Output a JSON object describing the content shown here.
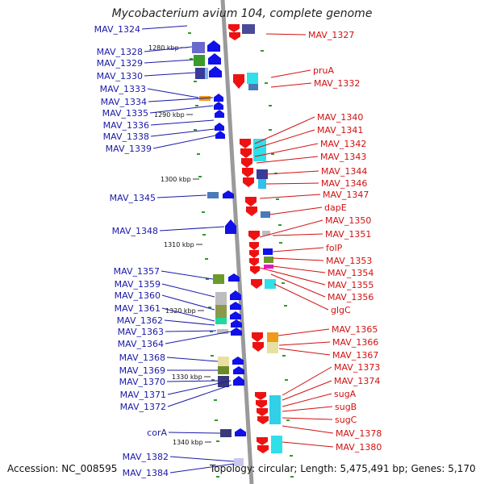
{
  "title": "Mycobacterium avium 104, complete genome",
  "accession": "Accession: NC_008595",
  "topology": "Topology: circular; Length: 5,475,491 bp; Genes: 5,170",
  "colors": {
    "left_label": "#1a1aa8",
    "right_label": "#d11111",
    "backbone": "#9a9a9a"
  },
  "ruler_ticks": [
    "1280 kbp",
    "1290 kbp",
    "1300 kbp",
    "1310 kbp",
    "1320 kbp",
    "1330 kbp",
    "1340 kbp"
  ],
  "left_labels": [
    "MAV_1324",
    "MAV_1328",
    "MAV_1329",
    "MAV_1330",
    "MAV_1333",
    "MAV_1334",
    "MAV_1335",
    "MAV_1336",
    "MAV_1338",
    "MAV_1339",
    "MAV_1345",
    "MAV_1348",
    "MAV_1357",
    "MAV_1359",
    "MAV_1360",
    "MAV_1361",
    "MAV_1362",
    "MAV_1363",
    "MAV_1364",
    "MAV_1368",
    "MAV_1369",
    "MAV_1370",
    "MAV_1371",
    "MAV_1372",
    "corA",
    "MAV_1382",
    "MAV_1384"
  ],
  "right_labels": [
    "MAV_1327",
    "pruA",
    "MAV_1332",
    "MAV_1340",
    "MAV_1341",
    "MAV_1342",
    "MAV_1343",
    "MAV_1344",
    "MAV_1346",
    "MAV_1347",
    "dapE",
    "MAV_1350",
    "MAV_1351",
    "folP",
    "MAV_1353",
    "MAV_1354",
    "MAV_1355",
    "MAV_1356",
    "glgC",
    "MAV_1365",
    "MAV_1366",
    "MAV_1367",
    "MAV_1373",
    "MAV_1374",
    "sugA",
    "sugB",
    "sugC",
    "MAV_1378",
    "MAV_1380"
  ]
}
